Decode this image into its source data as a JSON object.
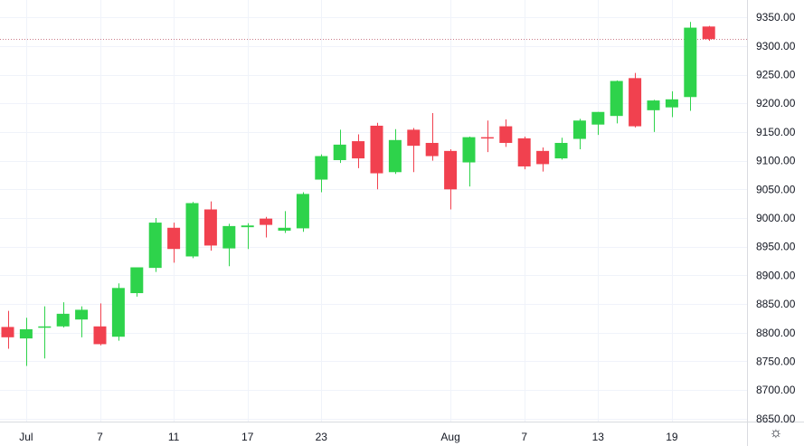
{
  "colors": {
    "up": "#2ed34b",
    "down": "#f1414f",
    "grid": "#f0f3fa",
    "axis_border": "#d9dbe0",
    "price_line": "#c97b8a",
    "text": "#131722"
  },
  "settings_icon": "gear-icon",
  "chart_data": {
    "type": "candlestick",
    "ylim": [
      8645,
      9355
    ],
    "y_ticks": [
      "9350.00",
      "9300.00",
      "9250.00",
      "9200.00",
      "9150.00",
      "9100.00",
      "9050.00",
      "9000.00",
      "8950.00",
      "8900.00",
      "8850.00",
      "8800.00",
      "8750.00",
      "8700.00",
      "8650.00"
    ],
    "x_ticks": [
      {
        "label": "Jul",
        "index": 1
      },
      {
        "label": "7",
        "index": 5
      },
      {
        "label": "11",
        "index": 9
      },
      {
        "label": "17",
        "index": 13
      },
      {
        "label": "23",
        "index": 17
      },
      {
        "label": "Aug",
        "index": 24
      },
      {
        "label": "7",
        "index": 28
      },
      {
        "label": "13",
        "index": 32
      },
      {
        "label": "19",
        "index": 36
      }
    ],
    "last_price": 9313,
    "candles": [
      {
        "o": 8810,
        "h": 8838,
        "l": 8772,
        "c": 8792
      },
      {
        "o": 8790,
        "h": 8826,
        "l": 8742,
        "c": 8806
      },
      {
        "o": 8809,
        "h": 8846,
        "l": 8755,
        "c": 8811
      },
      {
        "o": 8811,
        "h": 8853,
        "l": 8809,
        "c": 8833
      },
      {
        "o": 8823,
        "h": 8846,
        "l": 8792,
        "c": 8840
      },
      {
        "o": 8811,
        "h": 8851,
        "l": 8778,
        "c": 8780
      },
      {
        "o": 8793,
        "h": 8886,
        "l": 8786,
        "c": 8878
      },
      {
        "o": 8869,
        "h": 8914,
        "l": 8863,
        "c": 8914
      },
      {
        "o": 8913,
        "h": 9000,
        "l": 8906,
        "c": 8992
      },
      {
        "o": 8983,
        "h": 8992,
        "l": 8922,
        "c": 8946
      },
      {
        "o": 8933,
        "h": 9028,
        "l": 8930,
        "c": 9026
      },
      {
        "o": 9015,
        "h": 9029,
        "l": 8943,
        "c": 8952
      },
      {
        "o": 8947,
        "h": 8990,
        "l": 8916,
        "c": 8986
      },
      {
        "o": 8984,
        "h": 8991,
        "l": 8946,
        "c": 8987
      },
      {
        "o": 8999,
        "h": 9002,
        "l": 8966,
        "c": 8988
      },
      {
        "o": 8978,
        "h": 9012,
        "l": 8974,
        "c": 8983
      },
      {
        "o": 8982,
        "h": 9045,
        "l": 8976,
        "c": 9042
      },
      {
        "o": 9067,
        "h": 9111,
        "l": 9045,
        "c": 9108
      },
      {
        "o": 9101,
        "h": 9154,
        "l": 9096,
        "c": 9128
      },
      {
        "o": 9134,
        "h": 9146,
        "l": 9087,
        "c": 9104
      },
      {
        "o": 9161,
        "h": 9166,
        "l": 9050,
        "c": 9078
      },
      {
        "o": 9080,
        "h": 9155,
        "l": 9077,
        "c": 9136
      },
      {
        "o": 9154,
        "h": 9157,
        "l": 9080,
        "c": 9126
      },
      {
        "o": 9131,
        "h": 9183,
        "l": 9100,
        "c": 9108
      },
      {
        "o": 9117,
        "h": 9120,
        "l": 9015,
        "c": 9050
      },
      {
        "o": 9097,
        "h": 9142,
        "l": 9055,
        "c": 9141
      },
      {
        "o": 9141,
        "h": 9170,
        "l": 9115,
        "c": 9140
      },
      {
        "o": 9160,
        "h": 9172,
        "l": 9124,
        "c": 9131
      },
      {
        "o": 9139,
        "h": 9142,
        "l": 9085,
        "c": 9090
      },
      {
        "o": 9117,
        "h": 9123,
        "l": 9081,
        "c": 9094
      },
      {
        "o": 9104,
        "h": 9140,
        "l": 9102,
        "c": 9131
      },
      {
        "o": 9138,
        "h": 9173,
        "l": 9120,
        "c": 9170
      },
      {
        "o": 9163,
        "h": 9185,
        "l": 9145,
        "c": 9185
      },
      {
        "o": 9178,
        "h": 9240,
        "l": 9165,
        "c": 9239
      },
      {
        "o": 9244,
        "h": 9253,
        "l": 9158,
        "c": 9160
      },
      {
        "o": 9188,
        "h": 9206,
        "l": 9150,
        "c": 9205
      },
      {
        "o": 9193,
        "h": 9221,
        "l": 9176,
        "c": 9207
      },
      {
        "o": 9211,
        "h": 9342,
        "l": 9187,
        "c": 9332
      },
      {
        "o": 9334,
        "h": 9335,
        "l": 9309,
        "c": 9312
      }
    ]
  }
}
